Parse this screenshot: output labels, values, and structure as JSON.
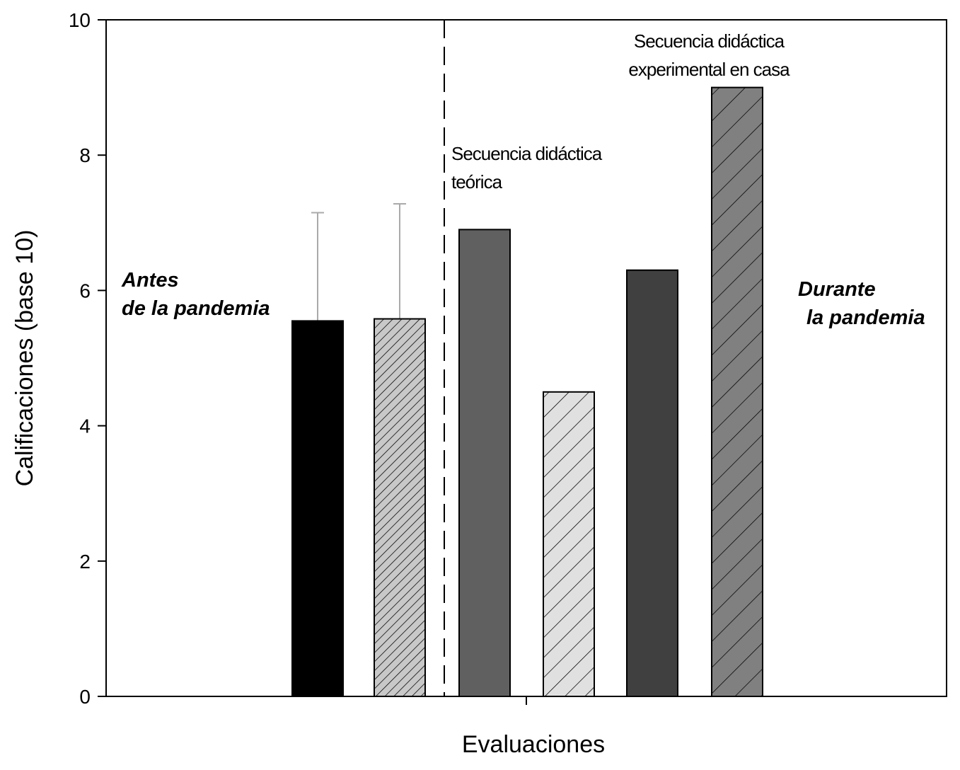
{
  "chart_data": {
    "type": "bar",
    "title": "",
    "xlabel": "Evaluaciones",
    "ylabel": "Calificaciones (base 10)",
    "ylim": [
      0,
      10
    ],
    "yticks": [
      "0",
      "2",
      "4",
      "6",
      "8",
      "10"
    ],
    "grid": false,
    "bars": [
      {
        "value": 5.55,
        "error_upper": 7.15,
        "fill": "#000000",
        "hatch": "none"
      },
      {
        "value": 5.58,
        "error_upper": 7.28,
        "fill": "#c8c8c8",
        "hatch": "dense"
      },
      {
        "value": 6.9,
        "fill": "#606060",
        "hatch": "none"
      },
      {
        "value": 4.5,
        "fill": "#e0e0e0",
        "hatch": "medium"
      },
      {
        "value": 6.3,
        "fill": "#404040",
        "hatch": "none"
      },
      {
        "value": 9.0,
        "fill": "#808080",
        "hatch": "wide"
      }
    ],
    "annotations": {
      "before": [
        "Antes",
        "de la pandemia"
      ],
      "during": [
        "Durante",
        "la pandemia"
      ],
      "theoretical": [
        "Secuencia didáctica",
        "teórica"
      ],
      "experimental": [
        "Secuencia didáctica",
        "experimental en casa"
      ]
    }
  }
}
